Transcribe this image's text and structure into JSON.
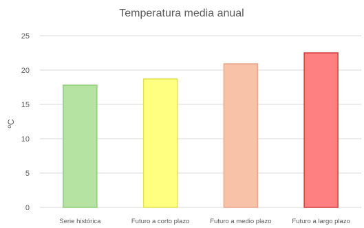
{
  "chart_data": {
    "type": "bar",
    "title": "Temperatura media anual",
    "xlabel": "",
    "ylabel": "ºC",
    "ylim": [
      0,
      25
    ],
    "yticks": [
      "0",
      "5",
      "10",
      "15",
      "20",
      "25"
    ],
    "grid": true,
    "categories": [
      "Serie histórica",
      "Futuro a corto plazo",
      "Futuro a medio plazo",
      "Futuro a largo plazo"
    ],
    "values": [
      17.8,
      18.7,
      20.9,
      22.5
    ],
    "colors": [
      {
        "fill": "#b5e3a2",
        "stroke": "#8fcf79"
      },
      {
        "fill": "#ffff80",
        "stroke": "#e2e24a"
      },
      {
        "fill": "#f7c2a8",
        "stroke": "#eba487"
      },
      {
        "fill": "#ff8080",
        "stroke": "#d63a3a"
      }
    ]
  }
}
